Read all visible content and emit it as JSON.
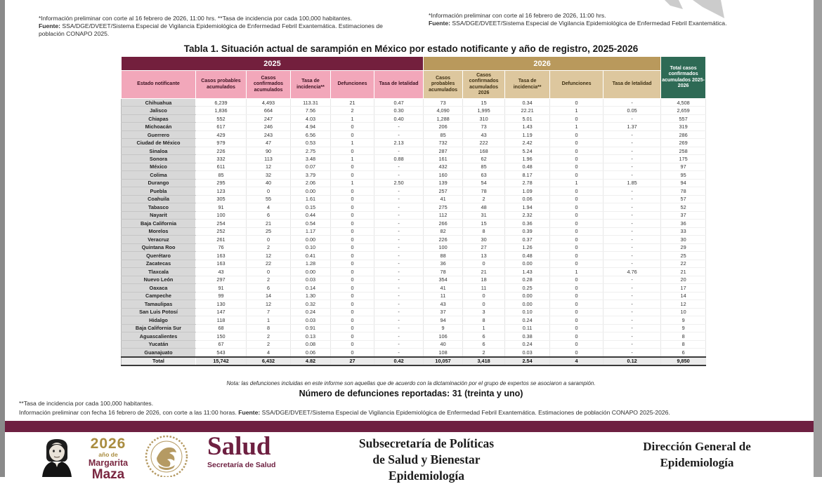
{
  "top_left_note": {
    "line1": "*Información preliminar con corte al 16 febrero de 2026, 11:00 hrs. **Tasa de incidencia por cada 100,000 habitantes.",
    "fuente_label": "Fuente:",
    "fuente_text": " SSA/DGE/DVEET/Sistema Especial de Vigilancia Epidemiológica de Enfermedad Febril Exantemática. Estimaciones de población CONAPO 2025."
  },
  "top_right_note": {
    "line1": "*Información preliminar con corte al 16 febrero de 2026, 11:00 hrs.",
    "fuente_label": "Fuente:",
    "fuente_text": " SSA/DGE/DVEET/Sistema Especial de Vigilancia Epidemiológica de Enfermedad Febril Exantemática."
  },
  "table": {
    "title": "Tabla 1. Situación actual de sarampión en México por estado notificante y año de registro, 2025-2026",
    "group_headers": {
      "y2025": "2025",
      "y2026": "2026",
      "total": "Total casos confirmados acumulados 2025-2026"
    },
    "columns": {
      "estado": "Estado notificante",
      "c2025": [
        "Casos probables acumulados",
        "Casos confirmados acumulados",
        "Tasa de incidencia**",
        "Defunciones",
        "Tasa de letalidad"
      ],
      "c2026": [
        "Casos probables acumulados",
        "Casos confirmados acumulados 2026",
        "Tasa de incidencia**",
        "Defunciones",
        "Tasa de letalidad"
      ]
    },
    "rows": [
      [
        "Chihuahua",
        "6,239",
        "4,493",
        "113.31",
        "21",
        "0.47",
        "73",
        "15",
        "0.34",
        "0",
        "-",
        "4,508"
      ],
      [
        "Jalisco",
        "1,836",
        "664",
        "7.56",
        "2",
        "0.30",
        "4,090",
        "1,995",
        "22.21",
        "1",
        "0.05",
        "2,659"
      ],
      [
        "Chiapas",
        "552",
        "247",
        "4.03",
        "1",
        "0.40",
        "1,288",
        "310",
        "5.01",
        "0",
        "-",
        "557"
      ],
      [
        "Michoacán",
        "617",
        "246",
        "4.94",
        "0",
        "-",
        "206",
        "73",
        "1.43",
        "1",
        "1.37",
        "319"
      ],
      [
        "Guerrero",
        "429",
        "243",
        "6.56",
        "0",
        "-",
        "85",
        "43",
        "1.19",
        "0",
        "-",
        "286"
      ],
      [
        "Ciudad de México",
        "979",
        "47",
        "0.53",
        "1",
        "2.13",
        "732",
        "222",
        "2.42",
        "0",
        "-",
        "269"
      ],
      [
        "Sinaloa",
        "226",
        "90",
        "2.75",
        "0",
        "-",
        "287",
        "168",
        "5.24",
        "0",
        "-",
        "258"
      ],
      [
        "Sonora",
        "332",
        "113",
        "3.48",
        "1",
        "0.88",
        "161",
        "62",
        "1.96",
        "0",
        "-",
        "175"
      ],
      [
        "México",
        "611",
        "12",
        "0.07",
        "0",
        "-",
        "432",
        "85",
        "0.48",
        "0",
        "-",
        "97"
      ],
      [
        "Colima",
        "85",
        "32",
        "3.79",
        "0",
        "-",
        "160",
        "63",
        "8.17",
        "0",
        "-",
        "95"
      ],
      [
        "Durango",
        "295",
        "40",
        "2.06",
        "1",
        "2.50",
        "139",
        "54",
        "2.78",
        "1",
        "1.85",
        "94"
      ],
      [
        "Puebla",
        "123",
        "0",
        "0.00",
        "0",
        "-",
        "257",
        "78",
        "1.09",
        "0",
        "-",
        "78"
      ],
      [
        "Coahuila",
        "305",
        "55",
        "1.61",
        "0",
        "-",
        "41",
        "2",
        "0.06",
        "0",
        "-",
        "57"
      ],
      [
        "Tabasco",
        "91",
        "4",
        "0.15",
        "0",
        "-",
        "275",
        "48",
        "1.94",
        "0",
        "-",
        "52"
      ],
      [
        "Nayarit",
        "100",
        "6",
        "0.44",
        "0",
        "-",
        "112",
        "31",
        "2.32",
        "0",
        "-",
        "37"
      ],
      [
        "Baja California",
        "254",
        "21",
        "0.54",
        "0",
        "-",
        "266",
        "15",
        "0.36",
        "0",
        "-",
        "36"
      ],
      [
        "Morelos",
        "252",
        "25",
        "1.17",
        "0",
        "-",
        "82",
        "8",
        "0.39",
        "0",
        "-",
        "33"
      ],
      [
        "Veracruz",
        "261",
        "0",
        "0.00",
        "0",
        "-",
        "226",
        "30",
        "0.37",
        "0",
        "-",
        "30"
      ],
      [
        "Quintana Roo",
        "76",
        "2",
        "0.10",
        "0",
        "-",
        "100",
        "27",
        "1.26",
        "0",
        "-",
        "29"
      ],
      [
        "Querétaro",
        "163",
        "12",
        "0.41",
        "0",
        "-",
        "88",
        "13",
        "0.48",
        "0",
        "-",
        "25"
      ],
      [
        "Zacatecas",
        "163",
        "22",
        "1.28",
        "0",
        "-",
        "36",
        "0",
        "0.00",
        "0",
        "-",
        "22"
      ],
      [
        "Tlaxcala",
        "43",
        "0",
        "0.00",
        "0",
        "-",
        "78",
        "21",
        "1.43",
        "1",
        "4.76",
        "21"
      ],
      [
        "Nuevo León",
        "297",
        "2",
        "0.03",
        "0",
        "-",
        "354",
        "18",
        "0.28",
        "0",
        "-",
        "20"
      ],
      [
        "Oaxaca",
        "91",
        "6",
        "0.14",
        "0",
        "-",
        "41",
        "11",
        "0.25",
        "0",
        "-",
        "17"
      ],
      [
        "Campeche",
        "99",
        "14",
        "1.30",
        "0",
        "-",
        "11",
        "0",
        "0.00",
        "0",
        "-",
        "14"
      ],
      [
        "Tamaulipas",
        "130",
        "12",
        "0.32",
        "0",
        "-",
        "43",
        "0",
        "0.00",
        "0",
        "-",
        "12"
      ],
      [
        "San Luis Potosí",
        "147",
        "7",
        "0.24",
        "0",
        "-",
        "37",
        "3",
        "0.10",
        "0",
        "-",
        "10"
      ],
      [
        "Hidalgo",
        "118",
        "1",
        "0.03",
        "0",
        "-",
        "94",
        "8",
        "0.24",
        "0",
        "-",
        "9"
      ],
      [
        "Baja California Sur",
        "68",
        "8",
        "0.91",
        "0",
        "-",
        "9",
        "1",
        "0.11",
        "0",
        "-",
        "9"
      ],
      [
        "Aguascalientes",
        "150",
        "2",
        "0.13",
        "0",
        "-",
        "106",
        "6",
        "0.38",
        "0",
        "-",
        "8"
      ],
      [
        "Yucatán",
        "67",
        "2",
        "0.08",
        "0",
        "-",
        "40",
        "6",
        "0.24",
        "0",
        "-",
        "8"
      ],
      [
        "Guanajuato",
        "543",
        "4",
        "0.06",
        "0",
        "-",
        "108",
        "2",
        "0.03",
        "0",
        "-",
        "6"
      ]
    ],
    "total_row": [
      "Total",
      "15,742",
      "6,432",
      "4.82",
      "27",
      "0.42",
      "10,057",
      "3,418",
      "2.54",
      "4",
      "0.12",
      "9,850"
    ]
  },
  "note_below_table": "Nota: las defunciones incluidas en este informe son aquellas que de acuerdo con la dictaminación por el grupo de expertos se asociaron a sarampión.",
  "deaths_reported": "Número de defunciones reportadas: 31 (treinta y uno)",
  "footnotes": {
    "rate": "**Tasa de incidencia por cada 100,000 habitantes.",
    "info": "Información preliminar con fecha 16 febrero de 2026, con corte a las 11:00 horas. ",
    "fuente_label": "Fuente:",
    "fuente_text": " SSA/DGE/DVEET/Sistema Especial de Vigilancia Epidemiológica de Enfermedad Febril Exantemática. Estimaciones de población CONAPO 2025-2026."
  },
  "footer": {
    "year": "2026",
    "year_sub": "año de",
    "name_line1": "Margarita",
    "name_line2": "Maza",
    "brand": "Salud",
    "brand_sub": "Secretaría de Salud",
    "center_line1": "Subsecretaría de Políticas",
    "center_line2": "de Salud y Bienestar",
    "center_line3_partial": "Epidemiología",
    "right_line1": "Dirección General de",
    "right_line2": "Epidemiología"
  },
  "colors": {
    "maroon_band": "#731f3d",
    "pink_header": "#f2a7ba",
    "tan_band": "#b9995c",
    "tan_header": "#ddc79e",
    "green_total": "#2e6a55",
    "footer_bar": "#6e2041",
    "gold": "#a98c3f",
    "state_cell_gray": "#d8d8d8"
  }
}
